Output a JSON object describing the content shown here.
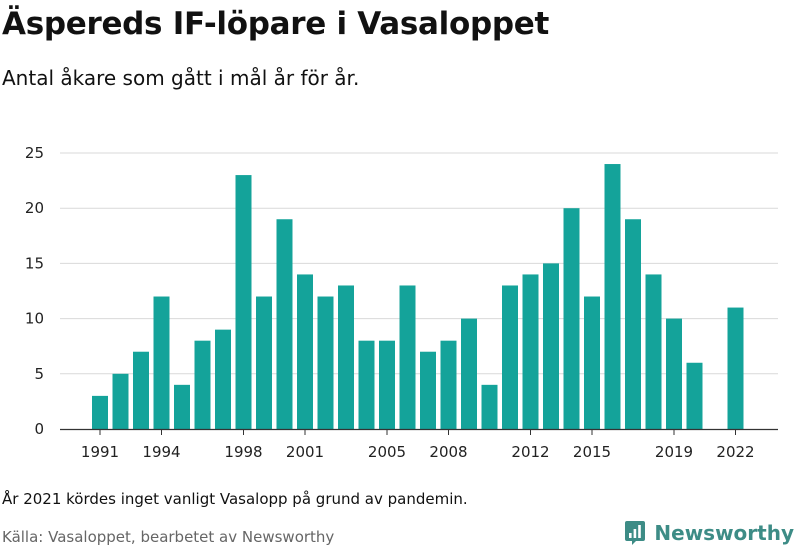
{
  "header": {
    "title": "Äspereds IF-löpare i Vasaloppet",
    "subtitle": "Antal åkare som gått i mål år för år."
  },
  "footer": {
    "note": "År 2021 kördes inget vanligt Vasalopp på grund av pandemin.",
    "source": "Källa: Vasaloppet, bearbetet av Newsworthy",
    "brand": "Newsworthy"
  },
  "colors": {
    "bar": "#14a39a",
    "grid": "#d9d9d9",
    "axis": "#333333",
    "brand": "#3d8c86"
  },
  "chart_data": {
    "type": "bar",
    "title": "Äspereds IF-löpare i Vasaloppet",
    "subtitle": "Antal åkare som gått i mål år för år.",
    "xlabel": "",
    "ylabel": "",
    "ylim": [
      0,
      25
    ],
    "yticks": [
      0,
      5,
      10,
      15,
      20,
      25
    ],
    "xticks": [
      "1991",
      "1994",
      "1998",
      "2001",
      "2005",
      "2008",
      "2012",
      "2015",
      "2019",
      "2022"
    ],
    "categories": [
      "1991",
      "1992",
      "1993",
      "1994",
      "1995",
      "1996",
      "1997",
      "1998",
      "1999",
      "2000",
      "2001",
      "2002",
      "2003",
      "2004",
      "2005",
      "2006",
      "2007",
      "2008",
      "2009",
      "2010",
      "2011",
      "2012",
      "2013",
      "2014",
      "2015",
      "2016",
      "2017",
      "2018",
      "2019",
      "2020",
      "2021",
      "2022"
    ],
    "values": [
      3,
      5,
      7,
      12,
      4,
      8,
      9,
      23,
      12,
      19,
      14,
      12,
      13,
      8,
      8,
      13,
      7,
      8,
      10,
      4,
      13,
      14,
      15,
      20,
      12,
      24,
      19,
      14,
      10,
      6,
      0,
      11
    ],
    "grid": true
  }
}
